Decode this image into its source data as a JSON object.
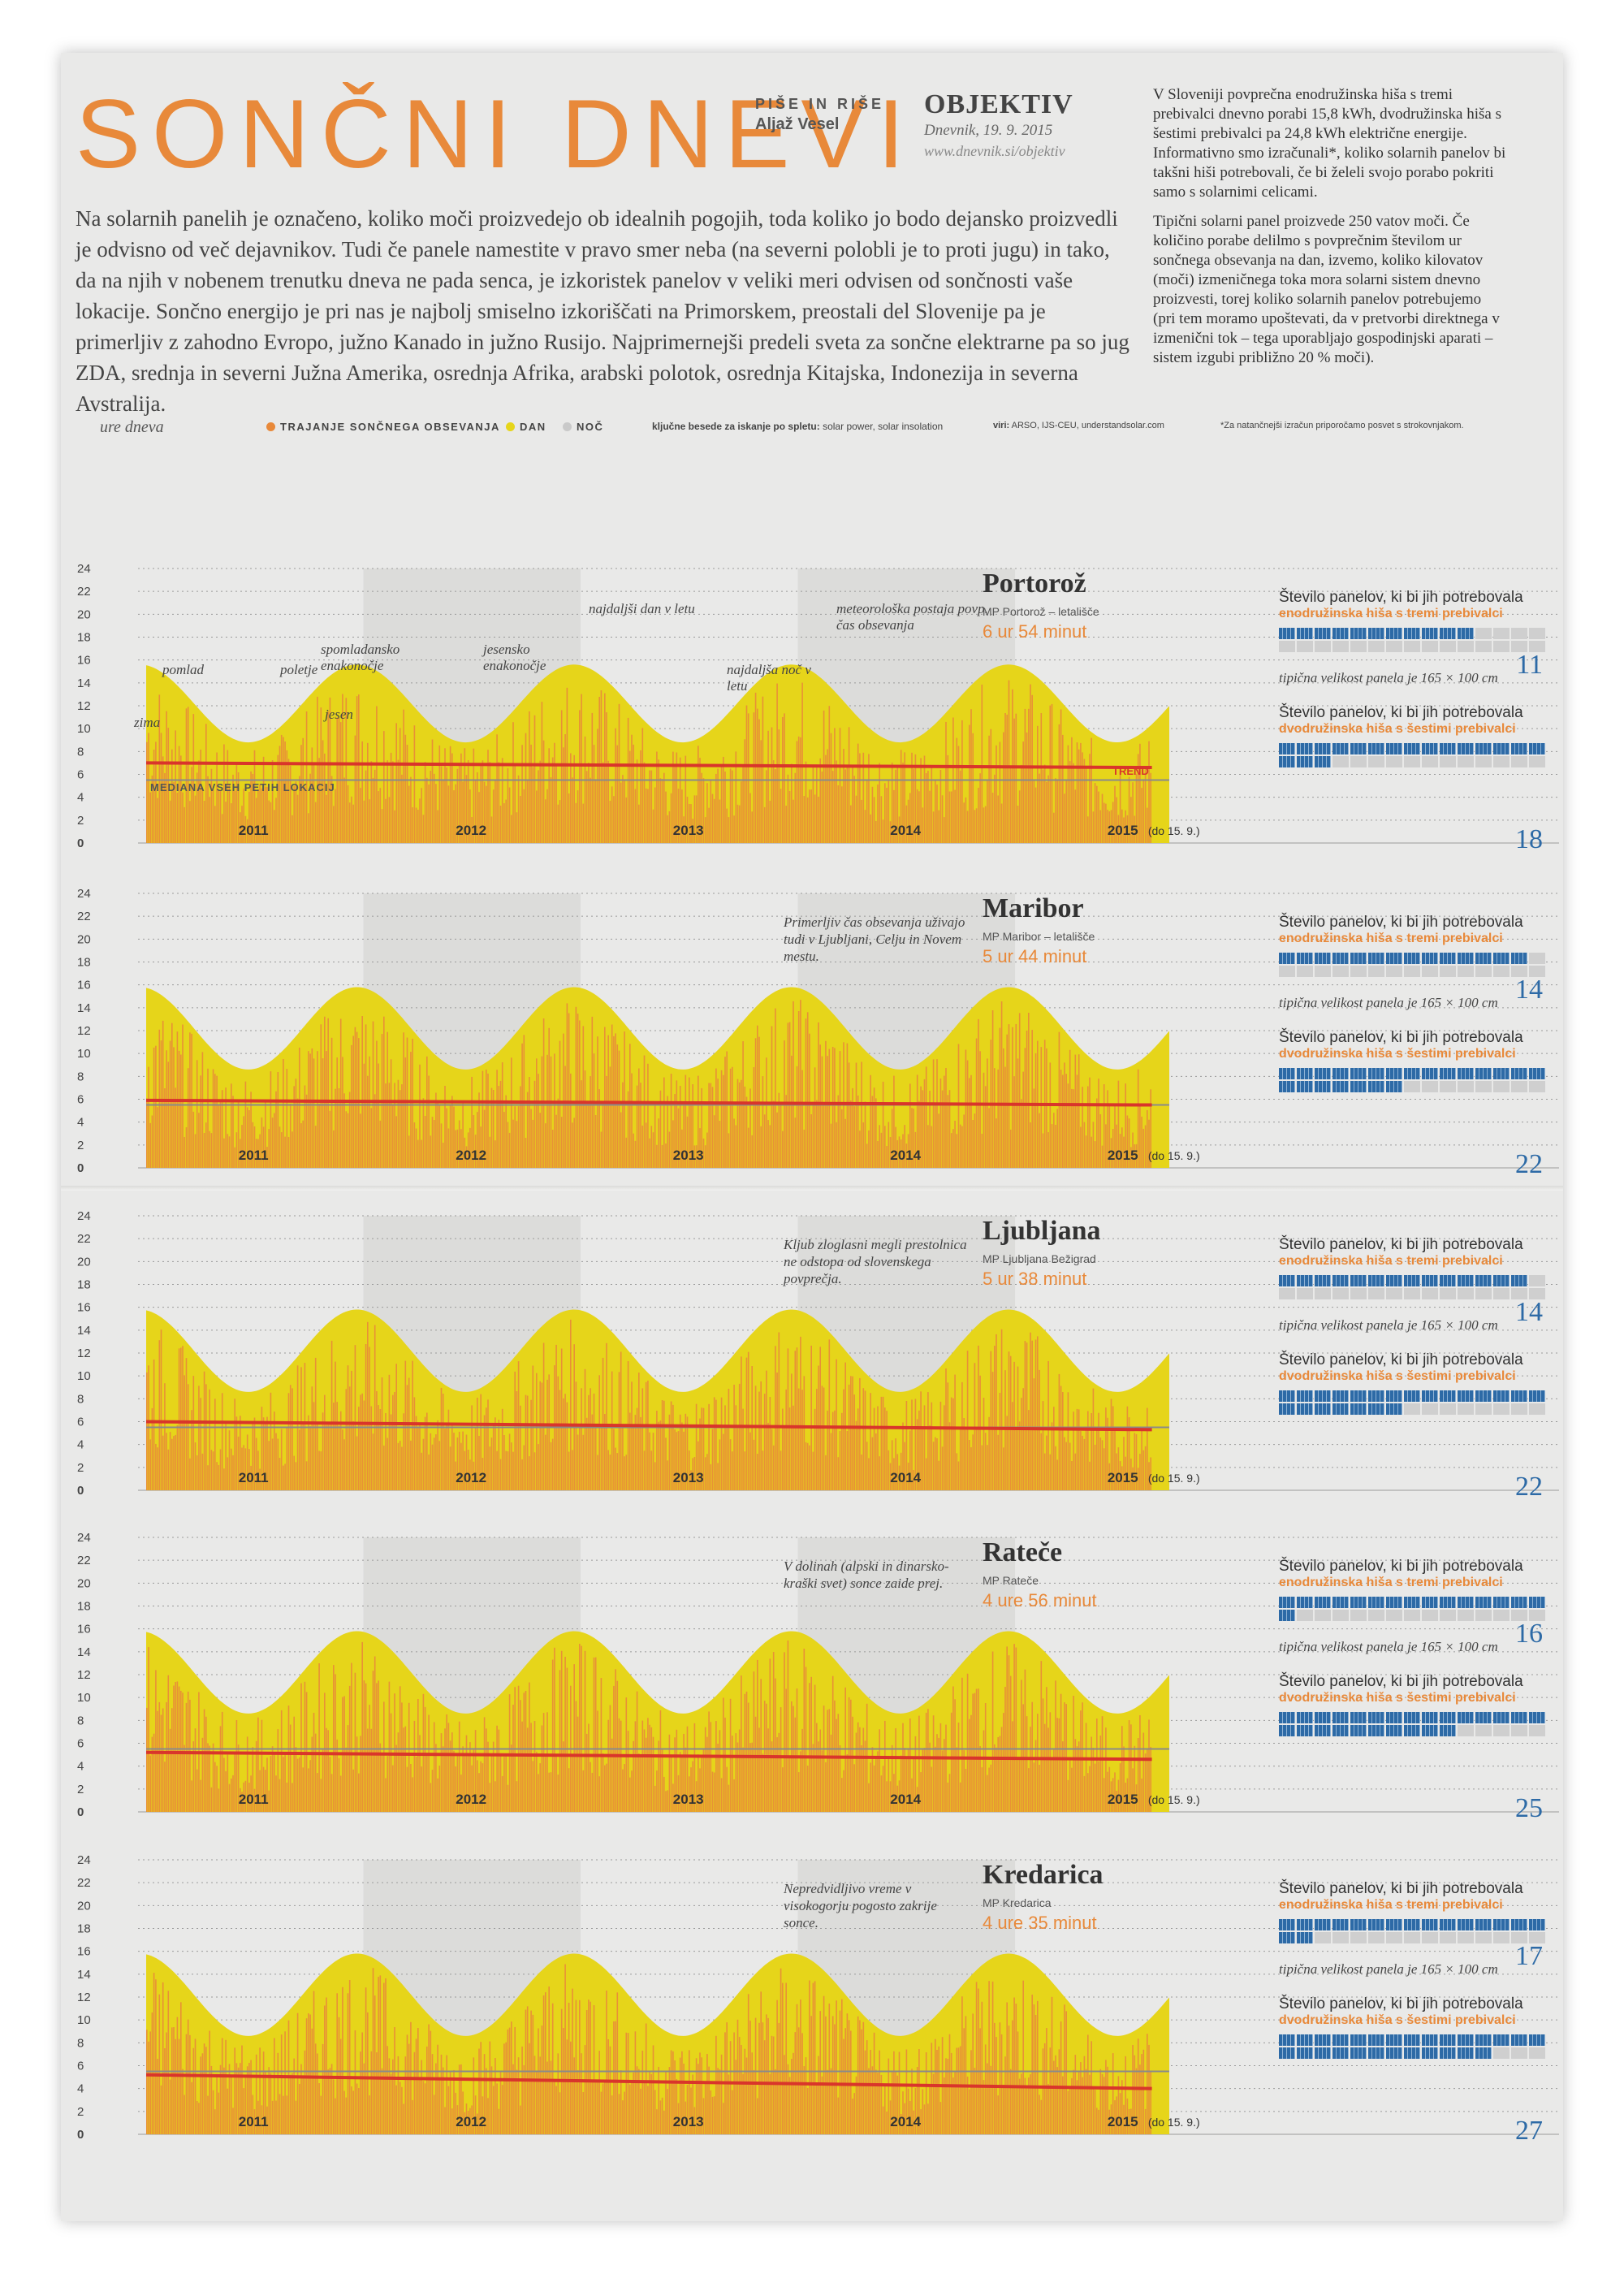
{
  "title": "SONČNI DNEVI",
  "author_label": "PIŠE IN RIŠE",
  "author": "Aljaž Vesel",
  "brand": "OBJEKTIV",
  "publication": "Dnevnik, 19. 9. 2015",
  "url": "www.dnevnik.si/objektiv",
  "sidebar": {
    "p1": "V Sloveniji povprečna enodružinska hiša s tremi prebivalci dnevno porabi 15,8 kWh, dvodružinska hiša s šestimi prebivalci pa 24,8 kWh električne energije. Informativno smo izračunali*, koliko solarnih panelov bi takšni hiši potrebovali, če bi želeli svojo porabo pokriti samo s solarnimi celicami.",
    "p2": "Tipični solarni panel proizvede 250 vatov moči. Če količino porabe delilmo s povprečnim številom ur sončnega obsevanja na dan, izvemo, koliko kilovatov (moči) izmeničnega toka mora solarni sistem dnevno proizvesti, torej koliko solarnih panelov potrebujemo (pri tem moramo upoštevati, da v pretvorbi direktnega v izmenični tok – tega uporabljajo gospodinjski aparati – sistem izgubi približno 20 % moči)."
  },
  "intro": "Na solarnih panelih je označeno, koliko moči proizvedejo ob idealnih pogojih, toda koliko jo bodo dejansko proizvedli je odvisno od več dejavnikov. Tudi če panele namestite v pravo smer neba (na severni polobli je to proti jugu) in tako, da na njih v nobenem trenutku dneva ne pada senca, je izkoristek panelov v veliki meri odvisen od sončnosti vaše lokacije. Sončno energijo je pri nas je najbolj smiselno izkoriščati na Primorskem, preostali del Slovenije pa je primerljiv z zahodno Evropo, južno Kanado in južno Rusijo. Najprimernejši predeli sveta za sončne elektrarne pa so jug ZDA, srednja in severni Južna Amerika, osrednja Afrika, arabski polotok, osrednja Kitajska, Indonezija in severna Avstralija.",
  "legend": {
    "y_unit": "ure dneva",
    "items": [
      "TRAJANJE SONČNEGA OBSEVANJA",
      "DAN",
      "NOČ"
    ],
    "keywords_label": "ključne besede za iskanje po spletu:",
    "keywords": "solar power, solar insolation",
    "sources_label": "viri:",
    "sources": "ARSO, IJS-CEU, understandsolar.com",
    "footnote": "*Za natančnejši izračun priporočamo posvet s strokovnjakom."
  },
  "colors": {
    "sun": "#e8893a",
    "day": "#e6d51a",
    "night": "#c9c9c9",
    "trend": "#d9352b",
    "accent": "#e8893a",
    "panel_blue": "#2d6aa6"
  },
  "right_labels": {
    "three": "Število panelov, ki bi jih potrebovala",
    "three_b": "enodružinska hiša s tremi prebivalci",
    "six": "Število panelov, ki bi jih potrebovala",
    "six_b": "dvodružinska hiša s šestimi prebivalci",
    "size": "tipična velikost panela je 165 × 100 cm"
  },
  "portoroz_annotations": [
    "zima",
    "pomlad",
    "poletje",
    "jesen",
    "spomladansko enakonočje",
    "jesensko enakonočje",
    "najdaljši dan v letu",
    "najdaljša noč v letu",
    "meteorološka postaja povp. čas obsevanja",
    "TREND",
    "MEDIANA VSEH PETIH LOKACIJ"
  ],
  "chart_data": [
    {
      "type": "area",
      "location": "Portorož",
      "station": "MP Portorož – letališče",
      "avg": "6 ur 54 minut",
      "note": "",
      "x": [
        "2011",
        "2012",
        "2013",
        "2014",
        "2015"
      ],
      "x_last_suffix": "(do 15. 9.)",
      "ylim": [
        0,
        24
      ],
      "yticks": [
        0,
        2,
        4,
        6,
        8,
        10,
        12,
        14,
        16,
        18,
        20,
        22,
        24
      ],
      "day_length_min": 8.8,
      "day_length_max": 15.6,
      "trend_start": 7.0,
      "trend_end": 6.6,
      "median": 5.5,
      "panels_three": 11,
      "panels_six": 18
    },
    {
      "type": "area",
      "location": "Maribor",
      "station": "MP Maribor – letališče",
      "avg": "5 ur 44 minut",
      "note": "Primerljiv čas obsevanja uživajo tudi v Ljubljani, Celju in Novem mestu.",
      "x": [
        "2011",
        "2012",
        "2013",
        "2014",
        "2015"
      ],
      "x_last_suffix": "(do 15. 9.)",
      "ylim": [
        0,
        24
      ],
      "yticks": [
        0,
        2,
        4,
        6,
        8,
        10,
        12,
        14,
        16,
        18,
        20,
        22,
        24
      ],
      "day_length_min": 8.6,
      "day_length_max": 15.8,
      "trend_start": 5.9,
      "trend_end": 5.5,
      "median": 5.5,
      "panels_three": 14,
      "panels_six": 22
    },
    {
      "type": "area",
      "location": "Ljubljana",
      "station": "MP Ljubljana Bežigrad",
      "avg": "5 ur 38 minut",
      "note": "Kljub zloglasni megli prestolnica ne odstopa od slovenskega povprečja.",
      "x": [
        "2011",
        "2012",
        "2013",
        "2014",
        "2015"
      ],
      "x_last_suffix": "(do 15. 9.)",
      "ylim": [
        0,
        24
      ],
      "yticks": [
        0,
        2,
        4,
        6,
        8,
        10,
        12,
        14,
        16,
        18,
        20,
        22,
        24
      ],
      "day_length_min": 8.6,
      "day_length_max": 15.8,
      "trend_start": 6.0,
      "trend_end": 5.3,
      "median": 5.5,
      "panels_three": 14,
      "panels_six": 22
    },
    {
      "type": "area",
      "location": "Rateče",
      "station": "MP Rateče",
      "avg": "4 ure 56 minut",
      "note": "V dolinah (alpski in dinarsko-kraški svet) sonce zaide prej.",
      "x": [
        "2011",
        "2012",
        "2013",
        "2014",
        "2015"
      ],
      "x_last_suffix": "(do 15. 9.)",
      "ylim": [
        0,
        24
      ],
      "yticks": [
        0,
        2,
        4,
        6,
        8,
        10,
        12,
        14,
        16,
        18,
        20,
        22,
        24
      ],
      "day_length_min": 8.6,
      "day_length_max": 15.8,
      "trend_start": 5.2,
      "trend_end": 4.6,
      "median": 5.5,
      "panels_three": 16,
      "panels_six": 25
    },
    {
      "type": "area",
      "location": "Kredarica",
      "station": "MP Kredarica",
      "avg": "4 ure 35 minut",
      "note": "Nepredvidljivo vreme v visokogorju pogosto zakrije sonce.",
      "x": [
        "2011",
        "2012",
        "2013",
        "2014",
        "2015"
      ],
      "x_last_suffix": "(do 15. 9.)",
      "ylim": [
        0,
        24
      ],
      "yticks": [
        0,
        2,
        4,
        6,
        8,
        10,
        12,
        14,
        16,
        18,
        20,
        22,
        24
      ],
      "day_length_min": 8.6,
      "day_length_max": 15.8,
      "trend_start": 5.2,
      "trend_end": 4.0,
      "median": 5.5,
      "panels_three": 17,
      "panels_six": 27
    }
  ]
}
